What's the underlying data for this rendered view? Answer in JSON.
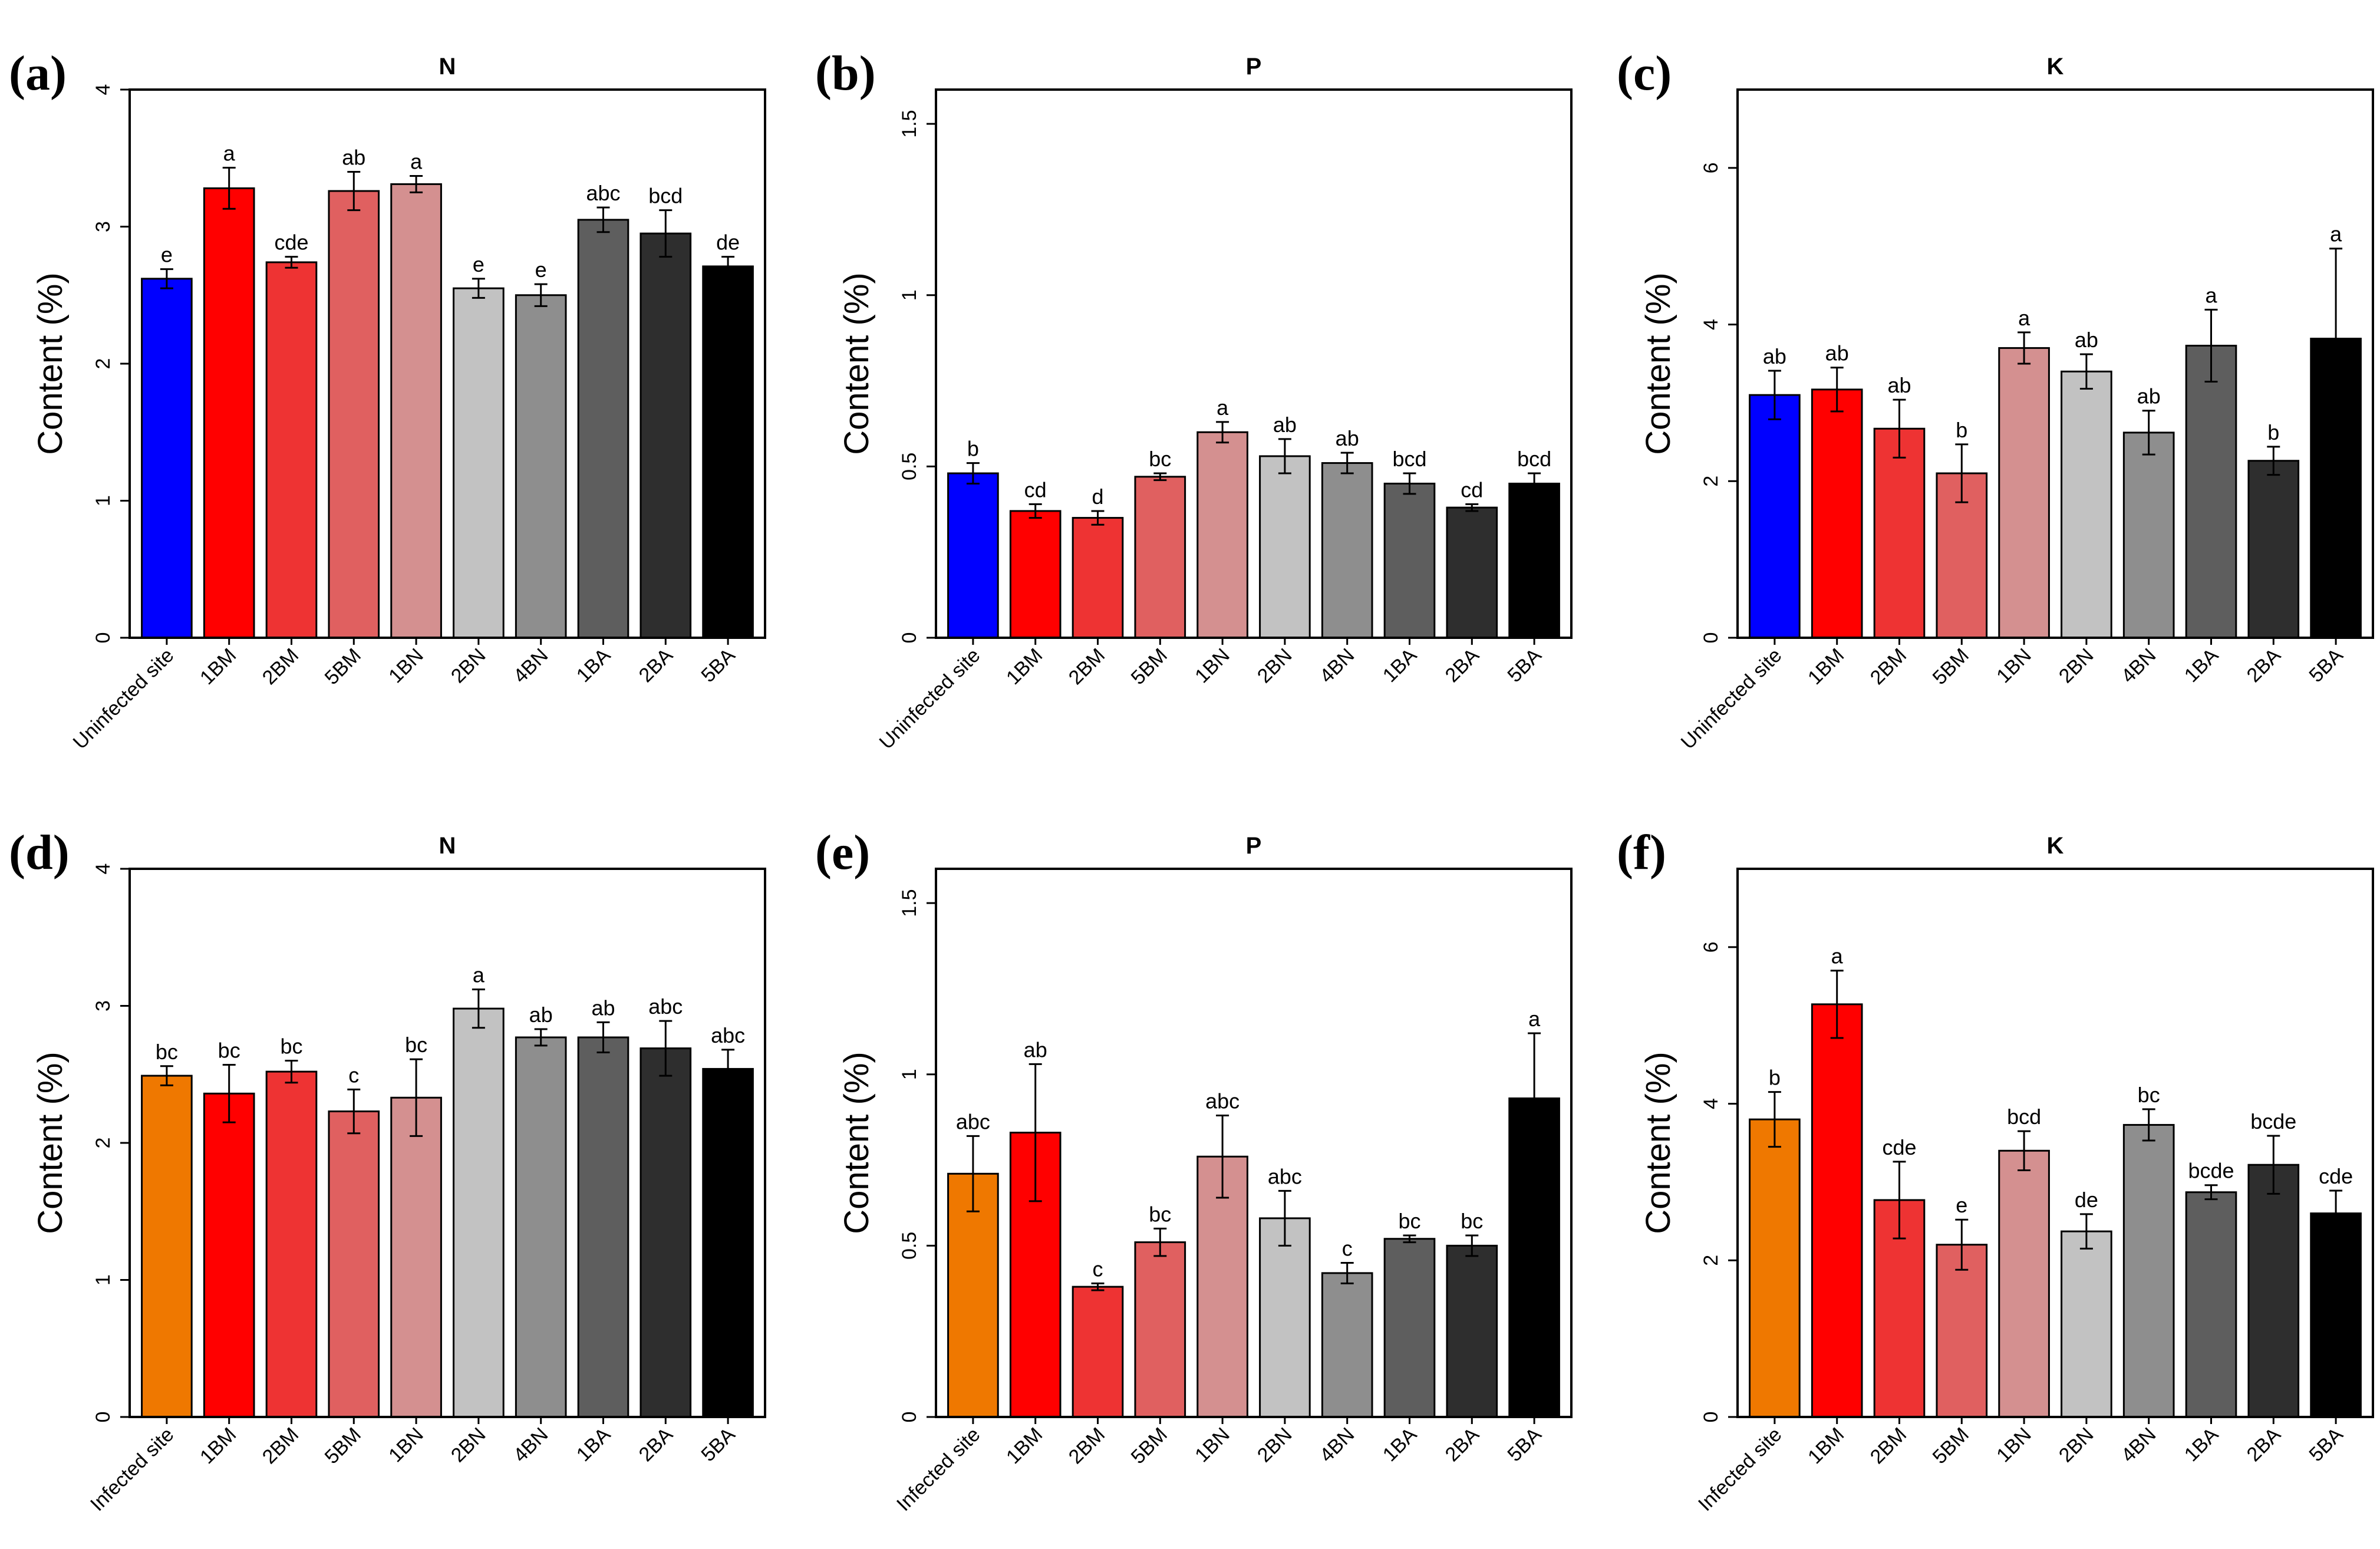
{
  "chart_data": [
    {
      "panel": "(a)",
      "type": "bar",
      "title": "N",
      "ylabel": "Content (%)",
      "xlabel": "",
      "ylim": [
        0,
        4
      ],
      "yticks": [
        0,
        1,
        2,
        3,
        4
      ],
      "grid": false,
      "categories": [
        "Uninfected site",
        "1BM",
        "2BM",
        "5BM",
        "1BN",
        "2BN",
        "4BN",
        "1BA",
        "2BA",
        "5BA"
      ],
      "values": [
        2.62,
        3.28,
        2.74,
        3.26,
        3.31,
        2.55,
        2.5,
        3.05,
        2.95,
        2.71
      ],
      "errors": [
        0.07,
        0.15,
        0.04,
        0.14,
        0.06,
        0.07,
        0.08,
        0.09,
        0.17,
        0.07
      ],
      "letters": [
        "e",
        "a",
        "cde",
        "ab",
        "a",
        "e",
        "e",
        "abc",
        "bcd",
        "de"
      ],
      "colors": [
        "#0000ff",
        "#ff0000",
        "#ee3333",
        "#e06060",
        "#d49090",
        "#c2c2c2",
        "#8e8e8e",
        "#5e5e5e",
        "#2e2e2e",
        "#000000"
      ]
    },
    {
      "panel": "(b)",
      "type": "bar",
      "title": "P",
      "ylabel": "Content (%)",
      "xlabel": "",
      "ylim": [
        0,
        1.6
      ],
      "yticks": [
        0,
        0.5,
        1,
        1.5
      ],
      "grid": false,
      "categories": [
        "Uninfected site",
        "1BM",
        "2BM",
        "5BM",
        "1BN",
        "2BN",
        "4BN",
        "1BA",
        "2BA",
        "5BA"
      ],
      "values": [
        0.48,
        0.37,
        0.35,
        0.47,
        0.6,
        0.53,
        0.51,
        0.45,
        0.38,
        0.45
      ],
      "errors": [
        0.03,
        0.02,
        0.02,
        0.01,
        0.03,
        0.05,
        0.03,
        0.03,
        0.01,
        0.03
      ],
      "letters": [
        "b",
        "cd",
        "d",
        "bc",
        "a",
        "ab",
        "ab",
        "bcd",
        "cd",
        "bcd"
      ],
      "colors": [
        "#0000ff",
        "#ff0000",
        "#ee3333",
        "#e06060",
        "#d49090",
        "#c2c2c2",
        "#8e8e8e",
        "#5e5e5e",
        "#2e2e2e",
        "#000000"
      ]
    },
    {
      "panel": "(c)",
      "type": "bar",
      "title": "K",
      "ylabel": "Content (%)",
      "xlabel": "",
      "ylim": [
        0,
        7
      ],
      "yticks": [
        0,
        2,
        4,
        6
      ],
      "grid": false,
      "categories": [
        "Uninfected site",
        "1BM",
        "2BM",
        "5BM",
        "1BN",
        "2BN",
        "4BN",
        "1BA",
        "2BA",
        "5BA"
      ],
      "values": [
        3.1,
        3.17,
        2.67,
        2.1,
        3.7,
        3.4,
        2.62,
        3.73,
        2.26,
        3.82
      ],
      "errors": [
        0.31,
        0.28,
        0.37,
        0.37,
        0.2,
        0.22,
        0.28,
        0.46,
        0.18,
        1.15
      ],
      "letters": [
        "ab",
        "ab",
        "ab",
        "b",
        "a",
        "ab",
        "ab",
        "a",
        "b",
        "a"
      ],
      "colors": [
        "#0000ff",
        "#ff0000",
        "#ee3333",
        "#e06060",
        "#d49090",
        "#c2c2c2",
        "#8e8e8e",
        "#5e5e5e",
        "#2e2e2e",
        "#000000"
      ]
    },
    {
      "panel": "(d)",
      "type": "bar",
      "title": "N",
      "ylabel": "Content (%)",
      "xlabel": "",
      "ylim": [
        0,
        4
      ],
      "yticks": [
        0,
        1,
        2,
        3,
        4
      ],
      "grid": false,
      "categories": [
        "Infected site",
        "1BM",
        "2BM",
        "5BM",
        "1BN",
        "2BN",
        "4BN",
        "1BA",
        "2BA",
        "5BA"
      ],
      "values": [
        2.49,
        2.36,
        2.52,
        2.23,
        2.33,
        2.98,
        2.77,
        2.77,
        2.69,
        2.54
      ],
      "errors": [
        0.07,
        0.21,
        0.08,
        0.16,
        0.28,
        0.14,
        0.06,
        0.11,
        0.2,
        0.14
      ],
      "letters": [
        "bc",
        "bc",
        "bc",
        "c",
        "bc",
        "a",
        "ab",
        "ab",
        "abc",
        "abc"
      ],
      "colors": [
        "#ef7800",
        "#ff0000",
        "#ee3333",
        "#e06060",
        "#d49090",
        "#c2c2c2",
        "#8e8e8e",
        "#5e5e5e",
        "#2e2e2e",
        "#000000"
      ]
    },
    {
      "panel": "(e)",
      "type": "bar",
      "title": "P",
      "ylabel": "Content (%)",
      "xlabel": "",
      "ylim": [
        0,
        1.6
      ],
      "yticks": [
        0,
        0.5,
        1,
        1.5
      ],
      "grid": false,
      "categories": [
        "Infected site",
        "1BM",
        "2BM",
        "5BM",
        "1BN",
        "2BN",
        "4BN",
        "1BA",
        "2BA",
        "5BA"
      ],
      "values": [
        0.71,
        0.83,
        0.38,
        0.51,
        0.76,
        0.58,
        0.42,
        0.52,
        0.5,
        0.93
      ],
      "errors": [
        0.11,
        0.2,
        0.01,
        0.04,
        0.12,
        0.08,
        0.03,
        0.01,
        0.03,
        0.19
      ],
      "letters": [
        "abc",
        "ab",
        "c",
        "bc",
        "abc",
        "abc",
        "c",
        "bc",
        "bc",
        "a"
      ],
      "colors": [
        "#ef7800",
        "#ff0000",
        "#ee3333",
        "#e06060",
        "#d49090",
        "#c2c2c2",
        "#8e8e8e",
        "#5e5e5e",
        "#2e2e2e",
        "#000000"
      ]
    },
    {
      "panel": "(f)",
      "type": "bar",
      "title": "K",
      "ylabel": "Content (%)",
      "xlabel": "",
      "ylim": [
        0,
        7
      ],
      "yticks": [
        0,
        2,
        4,
        6
      ],
      "grid": false,
      "categories": [
        "Infected site",
        "1BM",
        "2BM",
        "5BM",
        "1BN",
        "2BN",
        "4BN",
        "1BA",
        "2BA",
        "5BA"
      ],
      "values": [
        3.8,
        5.27,
        2.77,
        2.2,
        3.4,
        2.37,
        3.73,
        2.87,
        3.22,
        2.6
      ],
      "errors": [
        0.35,
        0.43,
        0.49,
        0.32,
        0.25,
        0.22,
        0.2,
        0.09,
        0.37,
        0.29
      ],
      "letters": [
        "b",
        "a",
        "cde",
        "e",
        "bcd",
        "de",
        "bc",
        "bcde",
        "bcde",
        "cde"
      ],
      "colors": [
        "#ef7800",
        "#ff0000",
        "#ee3333",
        "#e06060",
        "#d49090",
        "#c2c2c2",
        "#8e8e8e",
        "#5e5e5e",
        "#2e2e2e",
        "#000000"
      ]
    }
  ]
}
